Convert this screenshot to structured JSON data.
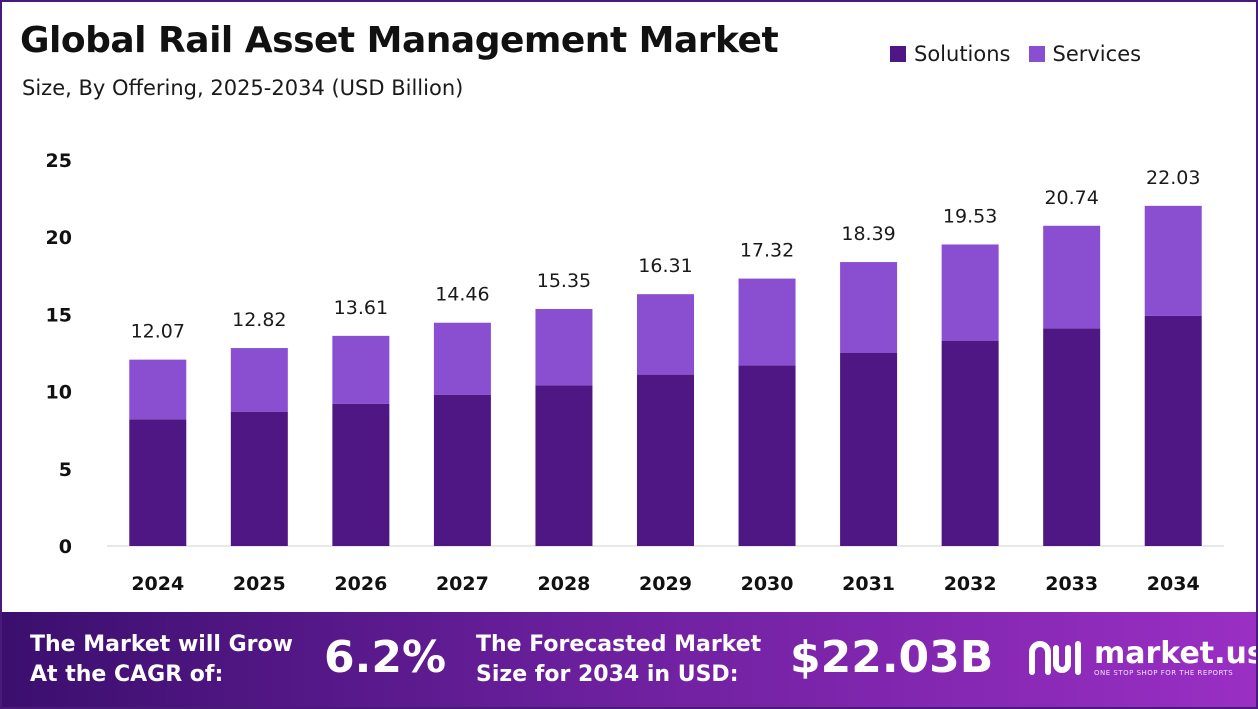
{
  "header": {
    "title": "Global Rail Asset Management Market",
    "subtitle": "Size, By Offering, 2025-2034 (USD Billion)"
  },
  "legend": [
    {
      "label": "Solutions",
      "color": "#4e1784"
    },
    {
      "label": "Services",
      "color": "#8a4fd0"
    }
  ],
  "chart_data": {
    "type": "bar",
    "stacked": true,
    "categories": [
      "2024",
      "2025",
      "2026",
      "2027",
      "2028",
      "2029",
      "2030",
      "2031",
      "2032",
      "2033",
      "2034"
    ],
    "series": [
      {
        "name": "Solutions",
        "color": "#4e1784",
        "values": [
          8.2,
          8.7,
          9.2,
          9.8,
          10.4,
          11.1,
          11.7,
          12.5,
          13.3,
          14.1,
          14.9
        ]
      },
      {
        "name": "Services",
        "color": "#8a4fd0",
        "values": [
          3.87,
          4.12,
          4.41,
          4.66,
          4.95,
          5.21,
          5.62,
          5.89,
          6.23,
          6.64,
          7.13
        ]
      }
    ],
    "totals": [
      "12.07",
      "12.82",
      "13.61",
      "14.46",
      "15.35",
      "16.31",
      "17.32",
      "18.39",
      "19.53",
      "20.74",
      "22.03"
    ],
    "ylim": [
      0,
      25
    ],
    "yticks": [
      "0",
      "5",
      "10",
      "15",
      "20",
      "25"
    ],
    "xlabel": "",
    "ylabel": "",
    "grid": false,
    "legend_position": "top-right"
  },
  "footer": {
    "cagr_text_line1": "The Market will Grow",
    "cagr_text_line2": "At the CAGR of:",
    "cagr_value": "6.2%",
    "forecast_text_line1": "The Forecasted Market",
    "forecast_text_line2": "Size for 2034 in USD:",
    "forecast_value": "$22.03B",
    "brand_name": "market.us",
    "brand_tagline": "ONE STOP SHOP FOR THE REPORTS"
  }
}
